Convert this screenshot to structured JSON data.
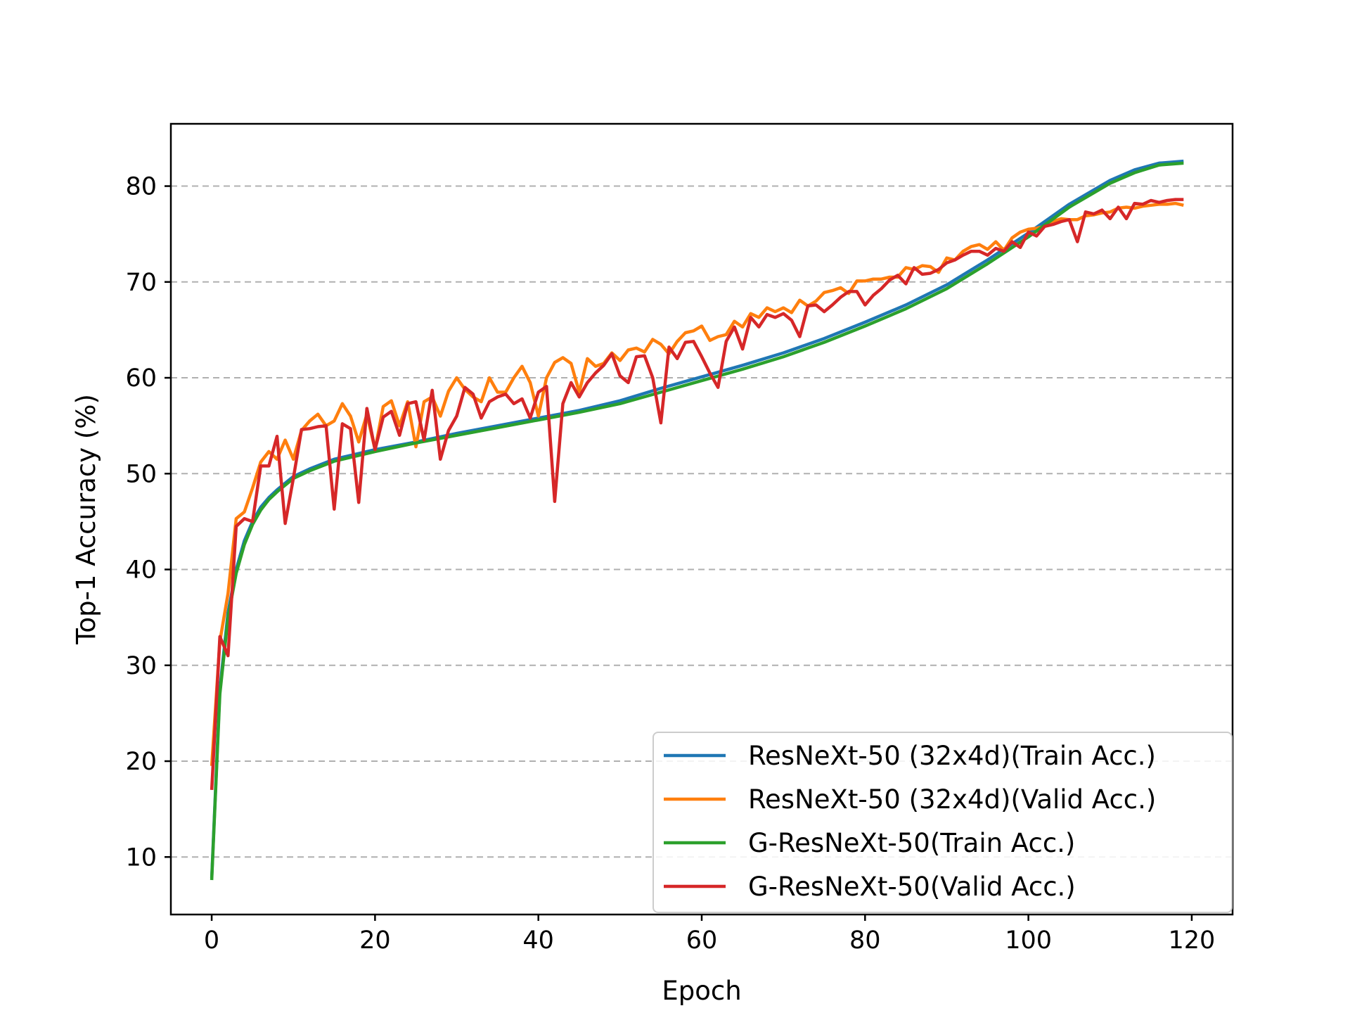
{
  "chart_data": {
    "type": "line",
    "title": "",
    "xlabel": "Epoch",
    "ylabel": "Top-1 Accuracy (%)",
    "xlim": [
      -5,
      125
    ],
    "ylim": [
      4,
      86.5
    ],
    "xticks": [
      0,
      20,
      40,
      60,
      80,
      100,
      120
    ],
    "yticks": [
      10,
      20,
      30,
      40,
      50,
      60,
      70,
      80
    ],
    "grid": "y-dashed",
    "legend_position": "lower-right",
    "series": [
      {
        "name": "ResNeXt-50 (32x4d)(Train Acc.)",
        "color": "#1f77b4",
        "x": [
          0,
          1,
          2,
          3,
          4,
          5,
          6,
          7,
          8,
          10,
          12,
          15,
          20,
          25,
          30,
          35,
          40,
          45,
          50,
          55,
          60,
          65,
          70,
          75,
          80,
          85,
          90,
          95,
          100,
          105,
          110,
          113,
          116,
          119
        ],
        "y": [
          7.8,
          27.5,
          35.5,
          40.0,
          43.0,
          45.0,
          46.5,
          47.5,
          48.3,
          49.7,
          50.5,
          51.5,
          52.5,
          53.3,
          54.2,
          55.0,
          55.8,
          56.6,
          57.6,
          58.9,
          60.1,
          61.3,
          62.6,
          64.1,
          65.8,
          67.6,
          69.7,
          72.3,
          75.1,
          78.1,
          80.6,
          81.7,
          82.4,
          82.6
        ]
      },
      {
        "name": "ResNeXt-50 (32x4d)(Valid Acc.)",
        "color": "#ff7f0e",
        "x": [
          0,
          1,
          2,
          3,
          4,
          5,
          6,
          7,
          8,
          9,
          10,
          11,
          12,
          13,
          14,
          15,
          16,
          17,
          18,
          19,
          20,
          21,
          22,
          23,
          24,
          25,
          26,
          27,
          28,
          29,
          30,
          31,
          32,
          33,
          34,
          35,
          36,
          37,
          38,
          39,
          40,
          41,
          42,
          43,
          44,
          45,
          46,
          47,
          48,
          49,
          50,
          51,
          52,
          53,
          54,
          55,
          56,
          57,
          58,
          59,
          60,
          61,
          62,
          63,
          64,
          65,
          66,
          67,
          68,
          69,
          70,
          71,
          72,
          73,
          74,
          75,
          76,
          77,
          78,
          79,
          80,
          81,
          82,
          83,
          84,
          85,
          86,
          87,
          88,
          89,
          90,
          91,
          92,
          93,
          94,
          95,
          96,
          97,
          98,
          99,
          100,
          101,
          102,
          103,
          104,
          105,
          106,
          107,
          108,
          109,
          110,
          111,
          112,
          113,
          114,
          115,
          116,
          117,
          118,
          119
        ],
        "y": [
          19.5,
          32.5,
          37.5,
          45.3,
          46.0,
          48.5,
          51.2,
          52.3,
          51.5,
          53.5,
          51.5,
          54.5,
          55.5,
          56.2,
          55.0,
          55.5,
          57.3,
          56.0,
          53.3,
          56.2,
          52.5,
          57.0,
          57.6,
          55.0,
          57.5,
          52.8,
          57.5,
          58.0,
          56.0,
          58.6,
          60.0,
          58.8,
          58.0,
          57.5,
          60.0,
          58.5,
          58.5,
          60.0,
          61.2,
          59.5,
          56.0,
          60.0,
          61.6,
          62.1,
          61.5,
          58.5,
          62.0,
          61.2,
          61.5,
          62.6,
          61.8,
          62.9,
          63.1,
          62.7,
          64.0,
          63.5,
          62.5,
          63.8,
          64.7,
          64.9,
          65.4,
          63.9,
          64.3,
          64.5,
          65.9,
          65.3,
          66.7,
          66.3,
          67.3,
          66.9,
          67.3,
          66.8,
          68.1,
          67.5,
          68.0,
          68.9,
          69.1,
          69.4,
          68.8,
          70.1,
          70.1,
          70.3,
          70.3,
          70.5,
          70.5,
          71.5,
          71.3,
          71.7,
          71.6,
          71.0,
          72.5,
          72.3,
          73.2,
          73.7,
          73.9,
          73.4,
          74.2,
          73.3,
          74.6,
          75.2,
          75.5,
          75.6,
          75.8,
          76.3,
          76.6,
          76.5,
          76.5,
          76.9,
          77.0,
          77.2,
          77.3,
          77.7,
          77.8,
          77.7,
          77.9,
          78.0,
          78.1,
          78.1,
          78.2,
          78.0
        ]
      },
      {
        "name": "G-ResNeXt-50(Train Acc.)",
        "color": "#2ca02c",
        "x": [
          0,
          1,
          2,
          3,
          4,
          5,
          6,
          7,
          8,
          10,
          12,
          15,
          20,
          25,
          30,
          35,
          40,
          45,
          50,
          55,
          60,
          65,
          70,
          75,
          80,
          85,
          90,
          95,
          100,
          105,
          110,
          113,
          116,
          119
        ],
        "y": [
          7.6,
          27.0,
          35.0,
          39.6,
          42.6,
          44.7,
          46.2,
          47.3,
          48.1,
          49.5,
          50.3,
          51.3,
          52.3,
          53.2,
          54.0,
          54.8,
          55.6,
          56.4,
          57.3,
          58.5,
          59.7,
          60.9,
          62.2,
          63.7,
          65.4,
          67.2,
          69.3,
          71.9,
          74.7,
          77.8,
          80.3,
          81.4,
          82.2,
          82.4
        ]
      },
      {
        "name": "G-ResNeXt-50(Valid Acc.)",
        "color": "#d62728",
        "x": [
          0,
          1,
          2,
          3,
          4,
          5,
          6,
          7,
          8,
          9,
          10,
          11,
          12,
          13,
          14,
          15,
          16,
          17,
          18,
          19,
          20,
          21,
          22,
          23,
          24,
          25,
          26,
          27,
          28,
          29,
          30,
          31,
          32,
          33,
          34,
          35,
          36,
          37,
          38,
          39,
          40,
          41,
          42,
          43,
          44,
          45,
          46,
          47,
          48,
          49,
          50,
          51,
          52,
          53,
          54,
          55,
          56,
          57,
          58,
          59,
          60,
          61,
          62,
          63,
          64,
          65,
          66,
          67,
          68,
          69,
          70,
          71,
          72,
          73,
          74,
          75,
          76,
          77,
          78,
          79,
          80,
          81,
          82,
          83,
          84,
          85,
          86,
          87,
          88,
          89,
          90,
          91,
          92,
          93,
          94,
          95,
          96,
          97,
          98,
          99,
          100,
          101,
          102,
          103,
          104,
          105,
          106,
          107,
          108,
          109,
          110,
          111,
          112,
          113,
          114,
          115,
          116,
          117,
          118,
          119
        ],
        "y": [
          17.0,
          33.0,
          31.0,
          44.5,
          45.3,
          45.0,
          50.8,
          50.8,
          53.9,
          44.8,
          49.5,
          54.6,
          54.7,
          54.9,
          55.0,
          46.3,
          55.2,
          54.7,
          47.0,
          56.8,
          52.5,
          55.9,
          56.5,
          54.0,
          57.3,
          57.5,
          53.5,
          58.7,
          51.5,
          54.5,
          56.0,
          59.0,
          58.3,
          55.8,
          57.5,
          58.0,
          58.3,
          57.3,
          57.8,
          55.8,
          58.5,
          59.1,
          47.1,
          57.3,
          59.5,
          58.0,
          59.5,
          60.5,
          61.3,
          62.5,
          60.2,
          59.5,
          62.2,
          62.3,
          60.0,
          55.3,
          63.2,
          62.0,
          63.7,
          63.8,
          62.2,
          60.5,
          59.0,
          63.8,
          65.3,
          63.0,
          66.3,
          65.3,
          66.6,
          66.3,
          66.7,
          66.0,
          64.3,
          67.5,
          67.6,
          66.9,
          67.6,
          68.4,
          69.0,
          69.0,
          67.6,
          68.6,
          69.3,
          70.2,
          70.7,
          69.8,
          71.5,
          70.8,
          70.9,
          71.3,
          72.0,
          72.3,
          72.8,
          73.2,
          73.2,
          72.8,
          73.5,
          73.2,
          74.2,
          73.6,
          75.2,
          74.8,
          75.8,
          76.0,
          76.3,
          76.5,
          74.2,
          77.3,
          77.1,
          77.5,
          76.6,
          77.8,
          76.6,
          78.2,
          78.1,
          78.5,
          78.3,
          78.5,
          78.6,
          78.6
        ]
      }
    ]
  }
}
